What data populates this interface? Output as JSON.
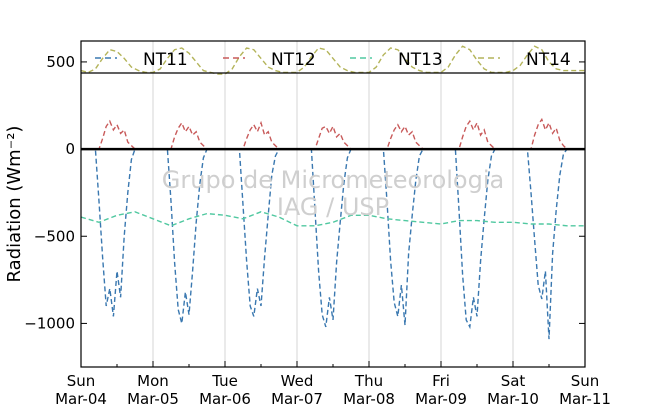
{
  "chart_data": {
    "type": "line",
    "ylabel": "Radiation (Wm⁻²)",
    "ylim": [
      -1250,
      620
    ],
    "xlim": [
      0,
      7
    ],
    "yticks": [
      500,
      0,
      -500,
      -1000
    ],
    "ytick_labels": [
      "500",
      "0",
      "−500",
      "−1000"
    ],
    "xticks": [
      0,
      1,
      2,
      3,
      4,
      5,
      6,
      7
    ],
    "xtick_labels": [
      [
        "Sun",
        "Mar-04"
      ],
      [
        "Mon",
        "Mar-05"
      ],
      [
        "Tue",
        "Mar-06"
      ],
      [
        "Wed",
        "Mar-07"
      ],
      [
        "Thu",
        "Mar-08"
      ],
      [
        "Fri",
        "Mar-09"
      ],
      [
        "Sat",
        "Mar-10"
      ],
      [
        "Sun",
        "Mar-11"
      ]
    ],
    "grid": "vertical",
    "legend_position": "top",
    "watermark": [
      "Grupo de Micrometeorologia",
      "IAG / USP"
    ],
    "series": [
      {
        "name": "NT11",
        "color": "#3a78b0",
        "x": [
          0.0,
          0.1,
          0.2,
          0.25,
          0.3,
          0.35,
          0.4,
          0.45,
          0.5,
          0.55,
          0.6,
          0.65,
          0.7,
          0.75,
          0.8,
          1.0,
          1.2,
          1.25,
          1.3,
          1.35,
          1.4,
          1.45,
          1.5,
          1.55,
          1.6,
          1.65,
          1.7,
          1.75,
          1.8,
          2.0,
          2.2,
          2.25,
          2.3,
          2.35,
          2.4,
          2.45,
          2.5,
          2.55,
          2.6,
          2.65,
          2.7,
          2.75,
          2.8,
          3.0,
          3.2,
          3.25,
          3.3,
          3.35,
          3.4,
          3.45,
          3.5,
          3.55,
          3.6,
          3.65,
          3.7,
          3.75,
          3.8,
          4.0,
          4.2,
          4.25,
          4.3,
          4.35,
          4.4,
          4.45,
          4.5,
          4.55,
          4.6,
          4.65,
          4.7,
          4.75,
          4.8,
          5.0,
          5.2,
          5.25,
          5.3,
          5.35,
          5.4,
          5.45,
          5.5,
          5.55,
          5.6,
          5.65,
          5.7,
          5.75,
          5.8,
          6.0,
          6.2,
          6.25,
          6.3,
          6.35,
          6.4,
          6.45,
          6.5,
          6.55,
          6.6,
          6.65,
          6.7,
          6.75,
          6.8
        ],
        "y": [
          0,
          0,
          0,
          -300,
          -620,
          -900,
          -800,
          -960,
          -700,
          -850,
          -500,
          -250,
          -60,
          0,
          0,
          0,
          0,
          -300,
          -650,
          -920,
          -1000,
          -820,
          -950,
          -700,
          -420,
          -200,
          -50,
          0,
          0,
          0,
          0,
          -320,
          -640,
          -900,
          -960,
          -800,
          -900,
          -620,
          -380,
          -150,
          -40,
          0,
          0,
          0,
          0,
          -350,
          -700,
          -950,
          -1020,
          -850,
          -980,
          -650,
          -420,
          -200,
          -50,
          0,
          0,
          0,
          0,
          -300,
          -640,
          -880,
          -960,
          -780,
          -1010,
          -600,
          -380,
          -180,
          -40,
          0,
          0,
          0,
          0,
          -350,
          -720,
          -980,
          -1020,
          -850,
          -960,
          -640,
          -400,
          -180,
          -40,
          0,
          0,
          0,
          0,
          -250,
          -520,
          -780,
          -860,
          -700,
          -1090,
          -600,
          -350,
          -150,
          -30,
          0,
          0
        ]
      },
      {
        "name": "NT12",
        "color": "#c85a5a",
        "x": [
          0.0,
          0.25,
          0.3,
          0.35,
          0.4,
          0.45,
          0.5,
          0.55,
          0.6,
          0.65,
          0.7,
          0.75,
          1.0,
          1.25,
          1.3,
          1.35,
          1.4,
          1.45,
          1.5,
          1.55,
          1.6,
          1.65,
          1.7,
          1.75,
          2.0,
          2.25,
          2.3,
          2.35,
          2.4,
          2.45,
          2.5,
          2.55,
          2.6,
          2.65,
          2.7,
          2.75,
          3.0,
          3.25,
          3.3,
          3.35,
          3.4,
          3.45,
          3.5,
          3.55,
          3.6,
          3.65,
          3.7,
          3.75,
          4.0,
          4.25,
          4.3,
          4.35,
          4.4,
          4.45,
          4.5,
          4.55,
          4.6,
          4.65,
          4.7,
          4.75,
          5.0,
          5.25,
          5.3,
          5.35,
          5.4,
          5.45,
          5.5,
          5.55,
          5.6,
          5.65,
          5.7,
          5.75,
          6.0,
          6.25,
          6.3,
          6.35,
          6.4,
          6.45,
          6.5,
          6.55,
          6.6,
          6.65,
          6.7,
          6.75,
          7.0
        ],
        "y": [
          0,
          0,
          60,
          130,
          160,
          110,
          140,
          90,
          110,
          40,
          20,
          0,
          0,
          0,
          70,
          120,
          150,
          100,
          130,
          80,
          100,
          40,
          20,
          0,
          0,
          0,
          60,
          110,
          140,
          100,
          150,
          80,
          100,
          40,
          20,
          0,
          0,
          0,
          60,
          120,
          130,
          90,
          130,
          70,
          90,
          40,
          20,
          0,
          0,
          0,
          60,
          110,
          140,
          100,
          130,
          80,
          100,
          40,
          20,
          0,
          0,
          0,
          70,
          130,
          160,
          110,
          150,
          80,
          110,
          40,
          20,
          0,
          0,
          0,
          80,
          140,
          170,
          110,
          150,
          90,
          120,
          50,
          20,
          0,
          0
        ]
      },
      {
        "name": "NT13",
        "color": "#50c8a0",
        "x": [
          0.0,
          0.25,
          0.5,
          0.75,
          1.0,
          1.25,
          1.5,
          1.75,
          2.0,
          2.25,
          2.5,
          2.75,
          3.0,
          3.25,
          3.5,
          3.75,
          4.0,
          4.25,
          4.5,
          4.75,
          5.0,
          5.25,
          5.5,
          5.75,
          6.0,
          6.25,
          6.5,
          6.75,
          7.0
        ],
        "y": [
          -390,
          -420,
          -380,
          -360,
          -400,
          -440,
          -400,
          -370,
          -380,
          -400,
          -360,
          -390,
          -440,
          -440,
          -420,
          -380,
          -380,
          -400,
          -410,
          -420,
          -430,
          -410,
          -410,
          -420,
          -420,
          -430,
          -430,
          -440,
          -440
        ]
      },
      {
        "name": "NT14",
        "color": "#b4b45a",
        "x": [
          0.0,
          0.1,
          0.2,
          0.3,
          0.4,
          0.5,
          0.6,
          0.7,
          0.8,
          0.9,
          1.0,
          1.1,
          1.2,
          1.3,
          1.4,
          1.5,
          1.6,
          1.7,
          1.8,
          1.9,
          2.0,
          2.1,
          2.2,
          2.3,
          2.4,
          2.5,
          2.6,
          2.7,
          2.8,
          2.9,
          3.0,
          3.1,
          3.2,
          3.3,
          3.4,
          3.5,
          3.6,
          3.7,
          3.8,
          3.9,
          4.0,
          4.1,
          4.2,
          4.3,
          4.4,
          4.5,
          4.6,
          4.7,
          4.8,
          4.9,
          5.0,
          5.1,
          5.2,
          5.3,
          5.4,
          5.5,
          5.6,
          5.7,
          5.8,
          5.9,
          6.0,
          6.1,
          6.2,
          6.3,
          6.4,
          6.5,
          6.6,
          6.7,
          6.8,
          6.9,
          7.0
        ],
        "y": [
          450,
          440,
          460,
          520,
          570,
          560,
          520,
          470,
          450,
          440,
          440,
          460,
          520,
          570,
          580,
          550,
          500,
          450,
          440,
          430,
          430,
          460,
          530,
          580,
          570,
          520,
          470,
          450,
          440,
          440,
          440,
          470,
          530,
          580,
          570,
          520,
          470,
          450,
          440,
          440,
          440,
          470,
          540,
          580,
          570,
          520,
          470,
          450,
          440,
          440,
          440,
          470,
          540,
          590,
          570,
          510,
          460,
          440,
          440,
          440,
          450,
          480,
          540,
          590,
          570,
          500,
          460,
          450,
          450,
          450,
          450
        ]
      }
    ]
  }
}
